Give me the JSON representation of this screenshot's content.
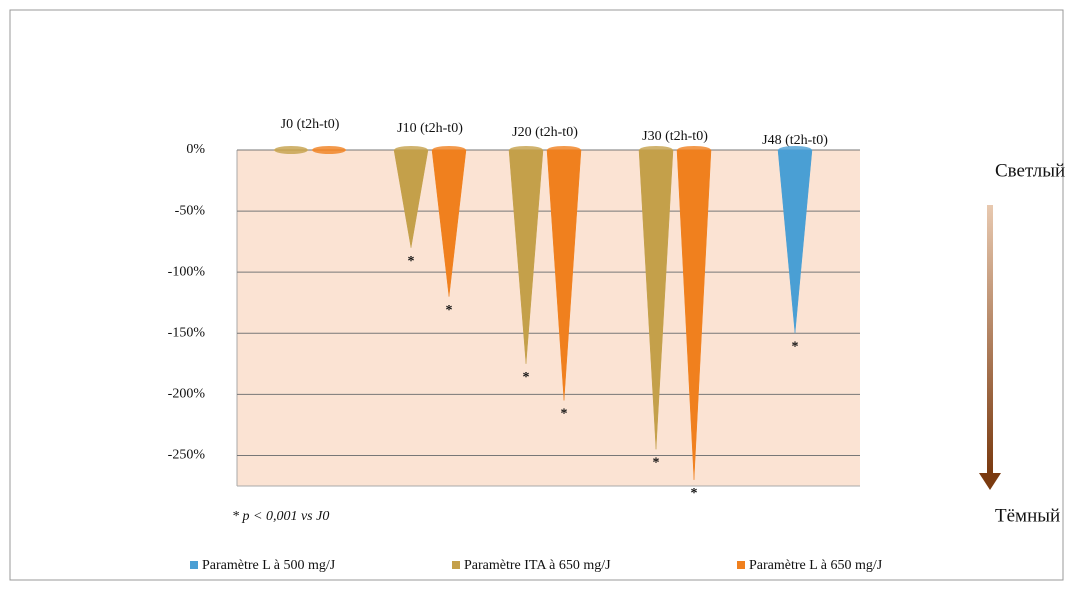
{
  "chart_data": {
    "type": "cone",
    "categories": [
      "J0 (t2h-t0)",
      "J10 (t2h-t0)",
      "J20 (t2h-t0)",
      "J30 (t2h-t0)",
      "J48 (t2h-t0)"
    ],
    "series": [
      {
        "name": "Paramètre L à 500 mg/J",
        "color": "#4a9fd4",
        "values": [
          null,
          null,
          null,
          null,
          -150
        ],
        "markers": [
          null,
          null,
          null,
          null,
          "*"
        ]
      },
      {
        "name": "Paramètre ITA à 650 mg/J",
        "color": "#c4a04a",
        "values": [
          0,
          -80,
          -175,
          -245,
          null
        ],
        "markers": [
          null,
          "*",
          "*",
          "*",
          null
        ]
      },
      {
        "name": "Paramètre L à 650 mg/J",
        "color": "#f0801e",
        "values": [
          0,
          -120,
          -205,
          -270,
          null
        ],
        "markers": [
          null,
          "*",
          "*",
          "*",
          null
        ]
      }
    ],
    "ylim": [
      -275,
      0
    ],
    "yticks": [
      {
        "value": 0,
        "label": "0%"
      },
      {
        "value": -50,
        "label": "-50%"
      },
      {
        "value": -100,
        "label": "-100%"
      },
      {
        "value": -150,
        "label": "-150%"
      },
      {
        "value": -200,
        "label": "-200%"
      },
      {
        "value": -250,
        "label": "-250%"
      }
    ],
    "grid": true,
    "legend": "bottom",
    "note": "* p <  0,001 vs J0",
    "scale_top_label": "Светлый",
    "scale_bottom_label": "Тёмный"
  }
}
